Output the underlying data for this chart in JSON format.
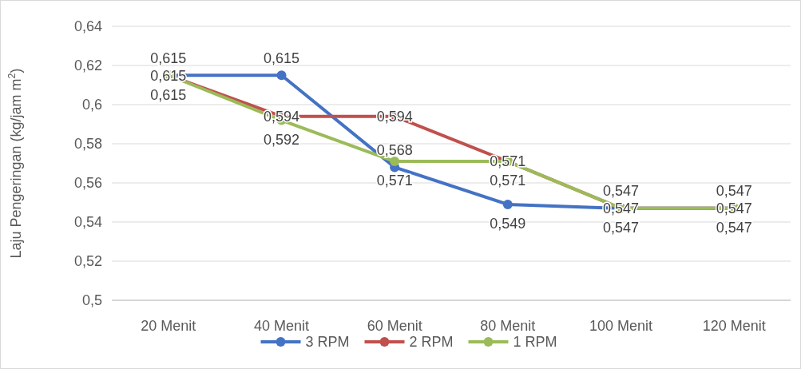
{
  "chart_data": {
    "type": "line",
    "ylabel": "Laju Pengeringan (kg/jam m$^{2}$)",
    "categories": [
      "20 Menit",
      "40 Menit",
      "60 Menit",
      "80 Menit",
      "100 Menit",
      "120 Menit"
    ],
    "series": [
      {
        "name": "3 RPM",
        "color": "#4472c4",
        "values": [
          0.615,
          0.615,
          0.568,
          0.549,
          0.547,
          0.547
        ],
        "value_labels": [
          "0,615",
          "0,615",
          "0,568",
          "0,549",
          "0,547",
          "0,547"
        ]
      },
      {
        "name": "2 RPM",
        "color": "#c0504d",
        "values": [
          0.615,
          0.594,
          0.594,
          0.571,
          0.547,
          0.547
        ],
        "value_labels": [
          "0,615",
          "0,594",
          "0,594",
          "0,571",
          "0,547",
          "0,547"
        ]
      },
      {
        "name": "1 RPM",
        "color": "#9bbb59",
        "values": [
          0.615,
          0.592,
          0.571,
          0.571,
          0.547,
          0.547
        ],
        "value_labels": [
          "0,615",
          "0,592",
          "0,571",
          "0,571",
          "0,547",
          "0,547"
        ]
      }
    ],
    "ylim": [
      0.5,
      0.64
    ],
    "yticks": [
      {
        "value": 0.5,
        "label": "0,5"
      },
      {
        "value": 0.52,
        "label": "0,52"
      },
      {
        "value": 0.54,
        "label": "0,54"
      },
      {
        "value": 0.56,
        "label": "0,56"
      },
      {
        "value": 0.58,
        "label": "0,58"
      },
      {
        "value": 0.6,
        "label": "0,6"
      },
      {
        "value": 0.62,
        "label": "0,62"
      },
      {
        "value": 0.64,
        "label": "0,64"
      }
    ],
    "grid": "y",
    "legend": "bottom",
    "marker": "circle",
    "line_style": "solid"
  }
}
